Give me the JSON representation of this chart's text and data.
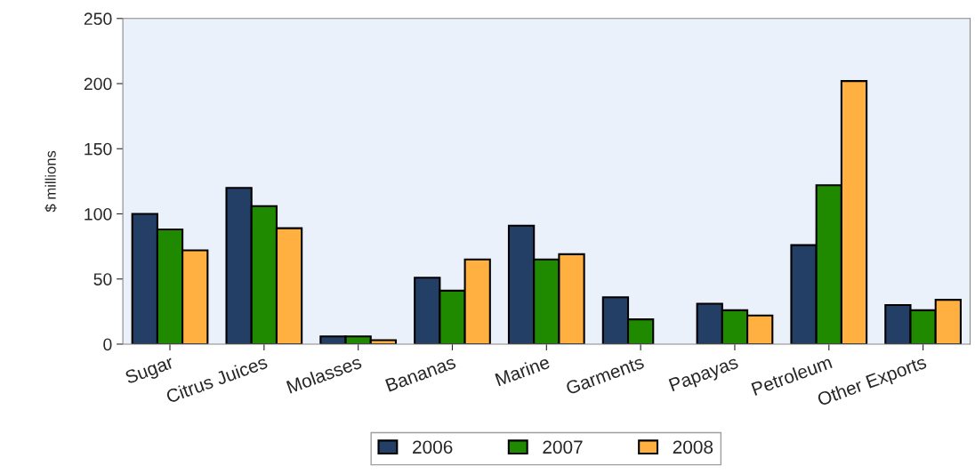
{
  "chart_data": {
    "type": "bar",
    "ylabel": "$ millions",
    "categories": [
      "Sugar",
      "Citrus Juices",
      "Molasses",
      "Bananas",
      "Marine",
      "Garments",
      "Papayas",
      "Petroleum",
      "Other Exports"
    ],
    "series": [
      {
        "name": "2006",
        "color": "#243f66",
        "values": [
          100,
          120,
          6,
          51,
          91,
          36,
          31,
          76,
          30
        ]
      },
      {
        "name": "2007",
        "color": "#1f8a00",
        "values": [
          88,
          106,
          6,
          41,
          65,
          19,
          26,
          122,
          26
        ]
      },
      {
        "name": "2008",
        "color": "#ffb040",
        "values": [
          72,
          89,
          3,
          65,
          69,
          null,
          22,
          202,
          34
        ]
      }
    ],
    "ylim": [
      0,
      250
    ],
    "yticks": [
      0,
      50,
      100,
      150,
      200,
      250
    ],
    "grid": false,
    "legend": "bottom"
  }
}
